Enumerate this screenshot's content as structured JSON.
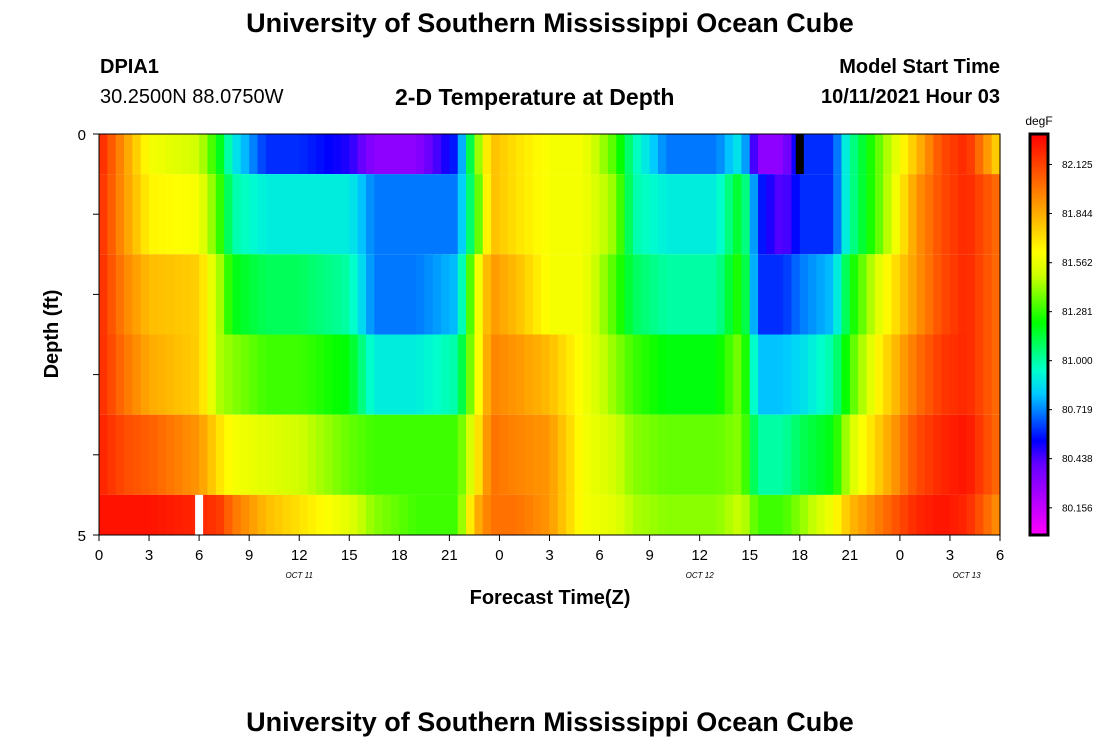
{
  "header": {
    "title": "University of Southern Mississippi Ocean Cube",
    "station": "DPIA1",
    "coords": "30.2500N  88.0750W",
    "plot_title": "2-D Temperature at Depth",
    "model_start_label": "Model Start Time",
    "model_start_value": "10/11/2021 Hour 03"
  },
  "footer": {
    "title": "University of Southern Mississippi Ocean Cube"
  },
  "chart_data": {
    "type": "heatmap",
    "title": "2-D Temperature at Depth",
    "xlabel": "Forecast Time(Z)",
    "ylabel": "Depth (ft)",
    "ylim": [
      0,
      5
    ],
    "y_tick_labels": [
      "0",
      "5"
    ],
    "x_tick_labels": [
      "0",
      "3",
      "6",
      "9",
      "12",
      "15",
      "18",
      "21",
      "0",
      "3",
      "6",
      "9",
      "12",
      "15",
      "18",
      "21",
      "0",
      "3",
      "6"
    ],
    "date_labels": [
      {
        "label": "OCT 11",
        "hour": 12
      },
      {
        "label": "OCT 12",
        "hour": 36
      },
      {
        "label": "OCT 13",
        "hour": 52
      }
    ],
    "xlim_hours": [
      0,
      54
    ],
    "colorbar": {
      "unit": "degF",
      "labels": [
        "82.125",
        "81.844",
        "81.562",
        "81.281",
        "81.000",
        "80.719",
        "80.438",
        "80.156"
      ],
      "min": 80.0,
      "max": 82.3,
      "colors": [
        "#ff00ff",
        "#cc00ff",
        "#9900ff",
        "#6600ff",
        "#0000ff",
        "#0066ff",
        "#00ccff",
        "#00ffcc",
        "#00ff66",
        "#00ff00",
        "#66ff00",
        "#ccff00",
        "#ffff00",
        "#ffcc00",
        "#ff9900",
        "#ff6600",
        "#ff3300",
        "#ff0000"
      ]
    },
    "depth_layers": [
      {
        "from": 0.0,
        "to": 0.5
      },
      {
        "from": 0.5,
        "to": 1.5
      },
      {
        "from": 1.5,
        "to": 2.5
      },
      {
        "from": 2.5,
        "to": 3.5
      },
      {
        "from": 3.5,
        "to": 4.5
      },
      {
        "from": 4.5,
        "to": 5.0
      }
    ],
    "time_keys": [
      0,
      1.5,
      3,
      6,
      7.2,
      8,
      10,
      12,
      15,
      16.5,
      19,
      21.5,
      22.5,
      23.5,
      25,
      27,
      29,
      31,
      32,
      34,
      37,
      38.5,
      39.5,
      41,
      42,
      44,
      45,
      47,
      49,
      50.5,
      52,
      54
    ],
    "temperature_rows": [
      [
        82.22,
        81.9,
        81.6,
        81.5,
        81.2,
        80.9,
        80.6,
        80.6,
        80.5,
        80.3,
        80.3,
        80.6,
        81.3,
        81.8,
        81.7,
        81.6,
        81.6,
        81.3,
        81.0,
        80.7,
        80.7,
        80.9,
        80.3,
        80.3,
        80.6,
        80.6,
        81.0,
        81.4,
        81.8,
        82.1,
        82.2,
        81.7
      ],
      [
        82.2,
        81.9,
        81.65,
        81.6,
        81.3,
        81.0,
        80.9,
        80.9,
        80.9,
        80.7,
        80.7,
        80.7,
        81.2,
        81.8,
        81.7,
        81.6,
        81.6,
        81.4,
        81.0,
        80.9,
        80.9,
        81.2,
        80.6,
        80.4,
        80.6,
        80.6,
        81.0,
        81.4,
        81.9,
        82.1,
        82.2,
        82.0
      ],
      [
        82.2,
        81.95,
        81.8,
        81.75,
        81.45,
        81.2,
        81.1,
        81.1,
        81.0,
        80.7,
        80.7,
        80.8,
        81.5,
        81.9,
        81.8,
        81.6,
        81.6,
        81.3,
        81.1,
        81.0,
        81.0,
        81.3,
        80.6,
        80.6,
        80.7,
        80.8,
        81.2,
        81.6,
        81.9,
        82.1,
        82.2,
        82.0
      ],
      [
        82.2,
        82.0,
        81.85,
        81.75,
        81.45,
        81.4,
        81.3,
        81.3,
        81.2,
        80.9,
        80.9,
        81.0,
        81.5,
        81.95,
        81.9,
        81.8,
        81.6,
        81.4,
        81.3,
        81.2,
        81.2,
        81.4,
        80.8,
        80.8,
        80.85,
        81.0,
        81.3,
        81.7,
        82.0,
        82.15,
        82.2,
        82.0
      ],
      [
        82.22,
        82.1,
        82.05,
        81.9,
        81.7,
        81.6,
        81.55,
        81.5,
        81.35,
        81.3,
        81.3,
        81.3,
        81.6,
        82.0,
        81.95,
        81.9,
        81.6,
        81.5,
        81.4,
        81.35,
        81.35,
        81.4,
        81.0,
        81.0,
        81.1,
        81.2,
        81.5,
        81.8,
        82.1,
        82.2,
        82.25,
        82.0
      ],
      [
        82.25,
        82.25,
        82.25,
        82.2,
        82.15,
        82.0,
        81.8,
        81.7,
        81.55,
        81.4,
        81.3,
        81.3,
        81.8,
        82.0,
        82.0,
        81.9,
        81.6,
        81.55,
        81.45,
        81.4,
        81.4,
        81.5,
        81.3,
        81.3,
        81.4,
        81.6,
        81.8,
        82.0,
        82.2,
        82.25,
        82.2,
        81.9
      ]
    ],
    "missing_markers": [
      {
        "hour": 6.0,
        "depth_from": 4.5,
        "depth_to": 5.0,
        "color": "#ffffff"
      },
      {
        "hour": 42.0,
        "depth_from": 0.0,
        "depth_to": 0.5,
        "color": "#000000"
      }
    ]
  }
}
